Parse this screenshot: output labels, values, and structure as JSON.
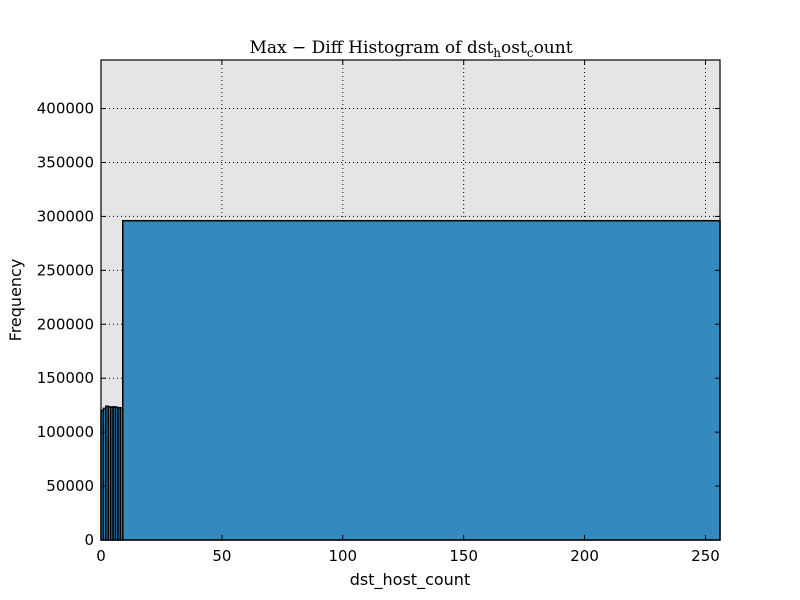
{
  "chart_data": {
    "type": "bar",
    "title": "Max − Diff Histogram of dst",
    "title_sub1": "h",
    "title_mid": "ost",
    "title_sub2": "c",
    "title_end": "ount",
    "xlabel": "dst_host_count",
    "ylabel": "Frequency",
    "xlim": [
      0,
      256
    ],
    "ylim": [
      0,
      445000
    ],
    "xticks": [
      0,
      50,
      100,
      150,
      200,
      250
    ],
    "yticks": [
      0,
      50000,
      100000,
      150000,
      200000,
      250000,
      300000,
      350000,
      400000
    ],
    "grid": true,
    "bar_color": "#348ABD",
    "bar_edge_color": "#000000",
    "plot_background": "#E5E5E5",
    "bins": [
      {
        "x0": 0,
        "x1": 1,
        "value": 120000
      },
      {
        "x0": 1,
        "x1": 2,
        "value": 122000
      },
      {
        "x0": 2,
        "x1": 3,
        "value": 124000
      },
      {
        "x0": 3,
        "x1": 4,
        "value": 123500
      },
      {
        "x0": 4,
        "x1": 5,
        "value": 123000
      },
      {
        "x0": 5,
        "x1": 6,
        "value": 123500
      },
      {
        "x0": 6,
        "x1": 7,
        "value": 123000
      },
      {
        "x0": 7,
        "x1": 8,
        "value": 122500
      },
      {
        "x0": 8,
        "x1": 9,
        "value": 122500
      },
      {
        "x0": 9,
        "x1": 256,
        "value": 296000
      }
    ]
  }
}
